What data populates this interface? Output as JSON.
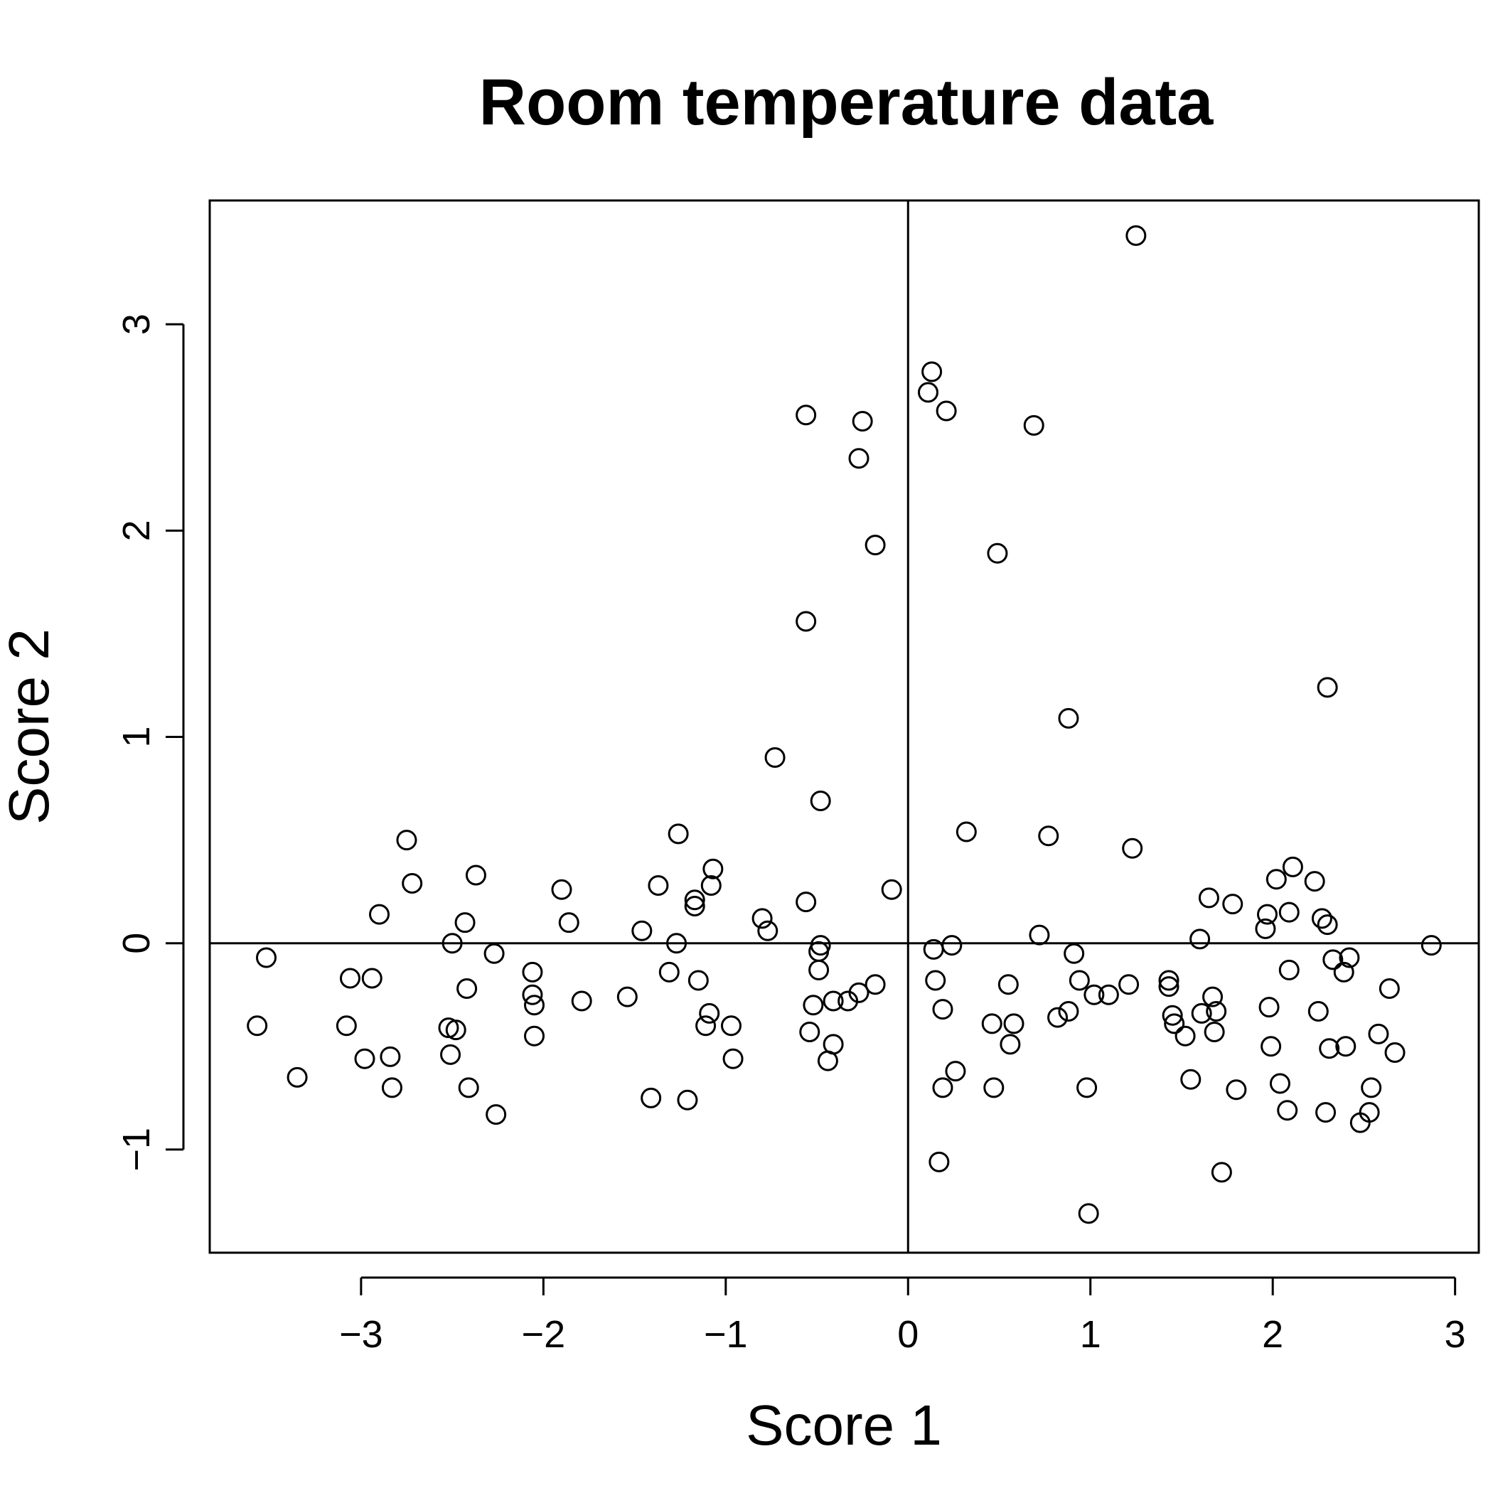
{
  "chart_data": {
    "type": "scatter",
    "title": "Room temperature data",
    "xlabel": "Score 1",
    "ylabel": "Score 2",
    "xlim": [
      -3.83,
      3.13
    ],
    "ylim": [
      -1.5,
      3.6
    ],
    "xticks": [
      -3,
      -2,
      -1,
      0,
      1,
      2,
      3
    ],
    "xtick_labels": [
      "−3",
      "−2",
      "−1",
      "0",
      "1",
      "2",
      "3"
    ],
    "yticks": [
      -1,
      0,
      1,
      2,
      3
    ],
    "ytick_labels": [
      "−1",
      "0",
      "1",
      "2",
      "3"
    ],
    "reference_lines": {
      "x": 0,
      "y": 0
    },
    "marker": "open-circle",
    "grid": false,
    "points": [
      [
        -3.57,
        -0.4
      ],
      [
        -3.52,
        -0.07
      ],
      [
        -3.35,
        -0.65
      ],
      [
        -3.08,
        -0.4
      ],
      [
        -3.06,
        -0.17
      ],
      [
        -2.98,
        -0.56
      ],
      [
        -2.94,
        -0.17
      ],
      [
        -2.9,
        0.14
      ],
      [
        -2.84,
        -0.55
      ],
      [
        -2.83,
        -0.7
      ],
      [
        -2.75,
        0.5
      ],
      [
        -2.72,
        0.29
      ],
      [
        -2.52,
        -0.41
      ],
      [
        -2.51,
        -0.54
      ],
      [
        -2.5,
        0.0
      ],
      [
        -2.48,
        -0.42
      ],
      [
        -2.43,
        0.1
      ],
      [
        -2.42,
        -0.22
      ],
      [
        -2.41,
        -0.7
      ],
      [
        -2.37,
        0.33
      ],
      [
        -2.27,
        -0.05
      ],
      [
        -2.26,
        -0.83
      ],
      [
        -2.06,
        -0.14
      ],
      [
        -2.06,
        -0.25
      ],
      [
        -2.05,
        -0.3
      ],
      [
        -2.05,
        -0.45
      ],
      [
        -1.9,
        0.26
      ],
      [
        -1.86,
        0.1
      ],
      [
        -1.79,
        -0.28
      ],
      [
        -1.54,
        -0.26
      ],
      [
        -1.46,
        0.06
      ],
      [
        -1.41,
        -0.75
      ],
      [
        -1.37,
        0.28
      ],
      [
        -1.31,
        -0.14
      ],
      [
        -1.27,
        0.0
      ],
      [
        -1.26,
        0.53
      ],
      [
        -1.21,
        -0.76
      ],
      [
        -1.17,
        0.18
      ],
      [
        -1.17,
        0.21
      ],
      [
        -1.15,
        -0.18
      ],
      [
        -1.11,
        -0.4
      ],
      [
        -1.09,
        -0.34
      ],
      [
        -1.08,
        0.28
      ],
      [
        -1.07,
        0.36
      ],
      [
        -0.97,
        -0.4
      ],
      [
        -0.96,
        -0.56
      ],
      [
        -0.8,
        0.12
      ],
      [
        -0.77,
        0.06
      ],
      [
        -0.73,
        0.9
      ],
      [
        -0.56,
        2.56
      ],
      [
        -0.56,
        1.56
      ],
      [
        -0.56,
        0.2
      ],
      [
        -0.54,
        -0.43
      ],
      [
        -0.52,
        -0.3
      ],
      [
        -0.49,
        -0.13
      ],
      [
        -0.49,
        -0.04
      ],
      [
        -0.48,
        -0.01
      ],
      [
        -0.48,
        0.69
      ],
      [
        -0.44,
        -0.57
      ],
      [
        -0.41,
        -0.49
      ],
      [
        -0.41,
        -0.28
      ],
      [
        -0.33,
        -0.28
      ],
      [
        -0.27,
        2.35
      ],
      [
        -0.27,
        -0.24
      ],
      [
        -0.25,
        2.53
      ],
      [
        -0.18,
        1.93
      ],
      [
        -0.18,
        -0.2
      ],
      [
        -0.09,
        0.26
      ],
      [
        0.11,
        2.67
      ],
      [
        0.13,
        2.77
      ],
      [
        0.14,
        -0.03
      ],
      [
        0.15,
        -0.18
      ],
      [
        0.17,
        -1.06
      ],
      [
        0.19,
        -0.7
      ],
      [
        0.19,
        -0.32
      ],
      [
        0.21,
        2.58
      ],
      [
        0.24,
        -0.01
      ],
      [
        0.26,
        -0.62
      ],
      [
        0.32,
        0.54
      ],
      [
        0.46,
        -0.39
      ],
      [
        0.47,
        -0.7
      ],
      [
        0.49,
        1.89
      ],
      [
        0.55,
        -0.2
      ],
      [
        0.56,
        -0.49
      ],
      [
        0.58,
        -0.39
      ],
      [
        0.69,
        2.51
      ],
      [
        0.72,
        0.04
      ],
      [
        0.77,
        0.52
      ],
      [
        0.82,
        -0.36
      ],
      [
        0.88,
        1.09
      ],
      [
        0.88,
        -0.33
      ],
      [
        0.91,
        -0.05
      ],
      [
        0.94,
        -0.18
      ],
      [
        0.98,
        -0.7
      ],
      [
        0.99,
        -1.31
      ],
      [
        1.02,
        -0.25
      ],
      [
        1.1,
        -0.25
      ],
      [
        1.21,
        -0.2
      ],
      [
        1.23,
        0.46
      ],
      [
        1.25,
        3.43
      ],
      [
        1.43,
        -0.18
      ],
      [
        1.43,
        -0.21
      ],
      [
        1.45,
        -0.35
      ],
      [
        1.46,
        -0.39
      ],
      [
        1.52,
        -0.45
      ],
      [
        1.55,
        -0.66
      ],
      [
        1.6,
        0.02
      ],
      [
        1.61,
        -0.34
      ],
      [
        1.65,
        0.22
      ],
      [
        1.67,
        -0.26
      ],
      [
        1.68,
        -0.43
      ],
      [
        1.69,
        -0.33
      ],
      [
        1.72,
        -1.11
      ],
      [
        1.78,
        0.19
      ],
      [
        1.8,
        -0.71
      ],
      [
        1.96,
        0.07
      ],
      [
        1.97,
        0.14
      ],
      [
        1.98,
        -0.31
      ],
      [
        1.99,
        -0.5
      ],
      [
        2.02,
        0.31
      ],
      [
        2.04,
        -0.68
      ],
      [
        2.08,
        -0.81
      ],
      [
        2.09,
        0.15
      ],
      [
        2.09,
        -0.13
      ],
      [
        2.11,
        0.37
      ],
      [
        2.23,
        0.3
      ],
      [
        2.25,
        -0.33
      ],
      [
        2.27,
        0.12
      ],
      [
        2.29,
        -0.82
      ],
      [
        2.3,
        0.09
      ],
      [
        2.3,
        1.24
      ],
      [
        2.31,
        -0.51
      ],
      [
        2.33,
        -0.08
      ],
      [
        2.39,
        -0.14
      ],
      [
        2.4,
        -0.5
      ],
      [
        2.42,
        -0.07
      ],
      [
        2.48,
        -0.87
      ],
      [
        2.53,
        -0.82
      ],
      [
        2.54,
        -0.7
      ],
      [
        2.58,
        -0.44
      ],
      [
        2.64,
        -0.22
      ],
      [
        2.67,
        -0.53
      ],
      [
        2.87,
        -0.01
      ]
    ]
  }
}
